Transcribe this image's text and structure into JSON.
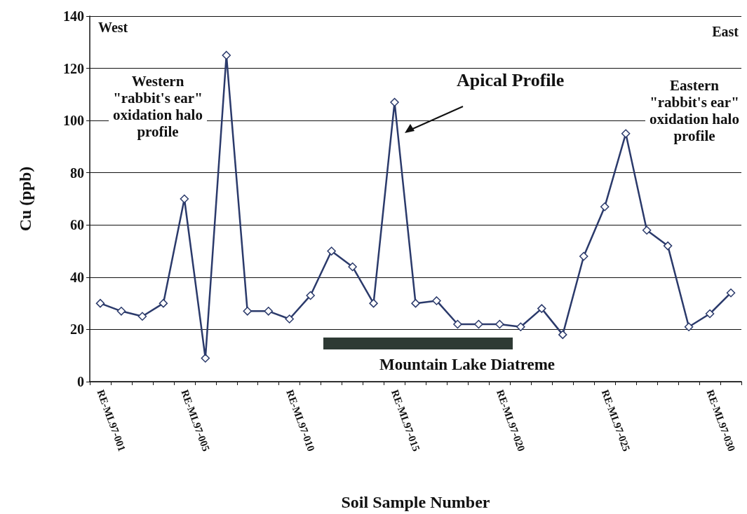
{
  "chart_data": {
    "type": "line",
    "xlabel": "Soil Sample Number",
    "ylabel": "Cu (ppb)",
    "categories": [
      "RE-ML97-001",
      null,
      null,
      null,
      "RE-ML97-005",
      null,
      null,
      null,
      null,
      "RE-ML97-010",
      null,
      null,
      null,
      null,
      "RE-ML97-015",
      null,
      null,
      null,
      null,
      "RE-ML97-020",
      null,
      null,
      null,
      null,
      "RE-ML97-025",
      null,
      null,
      null,
      null,
      "RE-ML97-030",
      null
    ],
    "series": [
      {
        "color": "#2b3a6b",
        "values": [
          30,
          27,
          25,
          30,
          70,
          9,
          125,
          27,
          27,
          24,
          33,
          50,
          44,
          30,
          107,
          30,
          31,
          22,
          22,
          22,
          21,
          28,
          18,
          48,
          67,
          95,
          58,
          52,
          21,
          26,
          34
        ]
      }
    ],
    "ylim": [
      0,
      140
    ],
    "yticks": [
      0,
      20,
      40,
      60,
      80,
      100,
      120,
      140
    ],
    "grid": "y",
    "marker": "diamond",
    "line_style": "solid",
    "annotations": [
      "West",
      "East",
      "Western \"rabbit's ear\" oxidation halo profile",
      "Apical Profile",
      "Eastern \"rabbit's ear\" oxidation halo profile",
      "Mountain Lake Diatreme"
    ]
  }
}
